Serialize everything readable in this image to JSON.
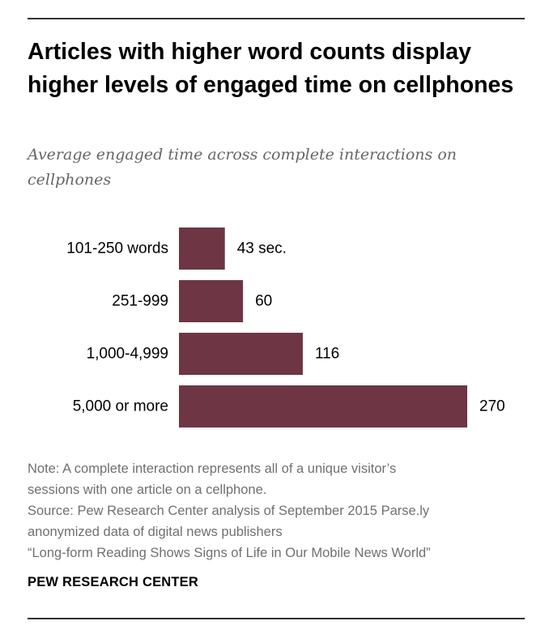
{
  "title": "Articles with higher word counts display higher levels of engaged time on cellphones",
  "subtitle": "Average engaged time across complete interactions on cellphones",
  "chart_data": {
    "type": "bar",
    "orientation": "horizontal",
    "title": "Articles with higher word counts display higher levels of engaged time on cellphones",
    "subtitle": "Average engaged time across complete interactions on cellphones",
    "categories": [
      "101-250 words",
      "251-999",
      "1,000-4,999",
      "5,000 or more"
    ],
    "values": [
      43,
      60,
      116,
      270
    ],
    "value_labels": [
      "43 sec.",
      "60",
      "116",
      "270"
    ],
    "unit": "seconds",
    "xlabel": "",
    "ylabel": "",
    "xlim": [
      0,
      270
    ],
    "grid": false,
    "bar_color": "#6e3544"
  },
  "notes": {
    "note_line1": "Note: A complete interaction represents all of a unique visitor’s",
    "note_line2": "sessions with one article on a cellphone.",
    "source_line1": "Source: Pew Research Center analysis of September 2015 Parse.ly",
    "source_line2": "anonymized data of digital news publishers",
    "report": "“Long-form Reading Shows Signs of Life in Our Mobile News World”"
  },
  "brand": "PEW RESEARCH CENTER"
}
